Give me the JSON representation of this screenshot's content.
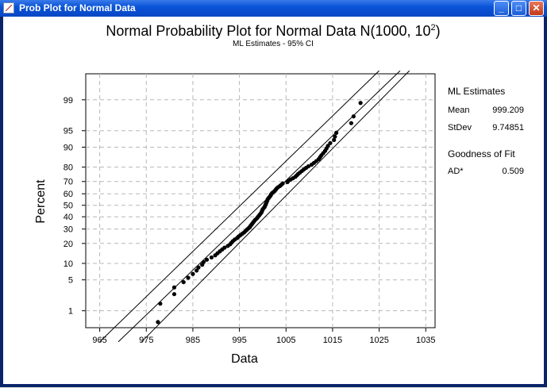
{
  "window": {
    "title": "Prob Plot for Normal Data",
    "minimize_label": "_",
    "maximize_label": "□",
    "close_label": "✕"
  },
  "chart_data": {
    "type": "scatter",
    "title": "Normal Probability Plot for Normal Data N(1000, 10",
    "title_superscript": "2",
    "title_suffix": ")",
    "subtitle": "ML Estimates - 95% CI",
    "xlabel": "Data",
    "ylabel": "Percent",
    "y_scale": "normal-probability",
    "grid": true,
    "xlim": [
      962,
      1037
    ],
    "x_ticks": [
      965,
      975,
      985,
      995,
      1005,
      1015,
      1025,
      1035
    ],
    "y_ticks": [
      1,
      5,
      10,
      20,
      30,
      40,
      50,
      60,
      70,
      80,
      90,
      95,
      99
    ],
    "legend": {
      "heading": "ML Estimates",
      "mean_label": "Mean",
      "mean_value": "999.209",
      "stdev_label": "StDev",
      "stdev_value": "9.74851",
      "gof_heading": "Goodness of Fit",
      "ad_label": "AD*",
      "ad_value": "0.509"
    },
    "fit_line": {
      "x": [
        969,
        1029.5
      ],
      "percent": [
        0.13,
        99.85
      ]
    },
    "ci_lower": {
      "x": [
        974,
        1031.5
      ],
      "percent": [
        0.13,
        99.85
      ]
    },
    "ci_upper": {
      "x": [
        965,
        1025
      ],
      "percent": [
        0.13,
        99.85
      ]
    },
    "points": [
      [
        977.5,
        0.5
      ],
      [
        978.0,
        1.5
      ],
      [
        981.0,
        2.5
      ],
      [
        981.0,
        3.5
      ],
      [
        983.0,
        4.5
      ],
      [
        984.0,
        5.5
      ],
      [
        985.0,
        6.5
      ],
      [
        985.8,
        7.5
      ],
      [
        986.2,
        8.5
      ],
      [
        987.0,
        9.5
      ],
      [
        987.3,
        10.5
      ],
      [
        988.0,
        11.5
      ],
      [
        989.0,
        12.5
      ],
      [
        989.8,
        13.5
      ],
      [
        990.3,
        14.5
      ],
      [
        990.8,
        15.5
      ],
      [
        991.3,
        16.5
      ],
      [
        991.8,
        17.5
      ],
      [
        992.5,
        18.5
      ],
      [
        993.0,
        19.5
      ],
      [
        993.3,
        20.5
      ],
      [
        993.6,
        21.5
      ],
      [
        994.0,
        22.5
      ],
      [
        994.5,
        23.5
      ],
      [
        994.8,
        24.5
      ],
      [
        995.2,
        25.5
      ],
      [
        995.6,
        26.5
      ],
      [
        996.0,
        27.5
      ],
      [
        996.3,
        28.5
      ],
      [
        996.6,
        29.5
      ],
      [
        996.9,
        30.5
      ],
      [
        997.2,
        31.5
      ],
      [
        997.4,
        32.5
      ],
      [
        997.6,
        33.5
      ],
      [
        997.8,
        34.5
      ],
      [
        998.0,
        35.5
      ],
      [
        998.2,
        36.5
      ],
      [
        998.4,
        37.5
      ],
      [
        998.7,
        38.5
      ],
      [
        998.9,
        39.5
      ],
      [
        999.1,
        40.5
      ],
      [
        999.3,
        41.5
      ],
      [
        999.5,
        42.5
      ],
      [
        999.7,
        43.5
      ],
      [
        999.8,
        44.5
      ],
      [
        999.9,
        45.5
      ],
      [
        1000.0,
        46.5
      ],
      [
        1000.2,
        47.5
      ],
      [
        1000.4,
        48.5
      ],
      [
        1000.5,
        49.5
      ],
      [
        1000.6,
        50.5
      ],
      [
        1000.7,
        51.5
      ],
      [
        1000.8,
        52.5
      ],
      [
        1000.9,
        53.5
      ],
      [
        1001.0,
        54.5
      ],
      [
        1001.1,
        55.5
      ],
      [
        1001.3,
        56.5
      ],
      [
        1001.5,
        57.5
      ],
      [
        1001.7,
        58.5
      ],
      [
        1001.8,
        59.5
      ],
      [
        1002.0,
        60.5
      ],
      [
        1002.3,
        61.5
      ],
      [
        1002.6,
        62.5
      ],
      [
        1002.8,
        63.5
      ],
      [
        1003.0,
        64.5
      ],
      [
        1003.3,
        65.5
      ],
      [
        1003.7,
        66.5
      ],
      [
        1004.0,
        67.5
      ],
      [
        1004.3,
        68.5
      ],
      [
        1005.3,
        69.5
      ],
      [
        1005.5,
        70.5
      ],
      [
        1006.0,
        71.5
      ],
      [
        1006.5,
        72.5
      ],
      [
        1007.0,
        73.5
      ],
      [
        1007.3,
        74.5
      ],
      [
        1007.6,
        75.5
      ],
      [
        1008.0,
        76.5
      ],
      [
        1008.4,
        77.5
      ],
      [
        1008.8,
        78.5
      ],
      [
        1009.3,
        79.5
      ],
      [
        1009.8,
        80.5
      ],
      [
        1010.5,
        81.5
      ],
      [
        1011.0,
        82.5
      ],
      [
        1011.5,
        83.5
      ],
      [
        1012.0,
        84.5
      ],
      [
        1012.3,
        85.5
      ],
      [
        1012.6,
        86.5
      ],
      [
        1013.0,
        87.5
      ],
      [
        1013.4,
        88.5
      ],
      [
        1013.7,
        89.5
      ],
      [
        1014.0,
        90.5
      ],
      [
        1014.5,
        91.5
      ],
      [
        1015.3,
        92.5
      ],
      [
        1015.5,
        93.5
      ],
      [
        1015.8,
        94.5
      ],
      [
        1019.0,
        96.5
      ],
      [
        1019.5,
        97.5
      ],
      [
        1021.0,
        98.8
      ]
    ]
  }
}
